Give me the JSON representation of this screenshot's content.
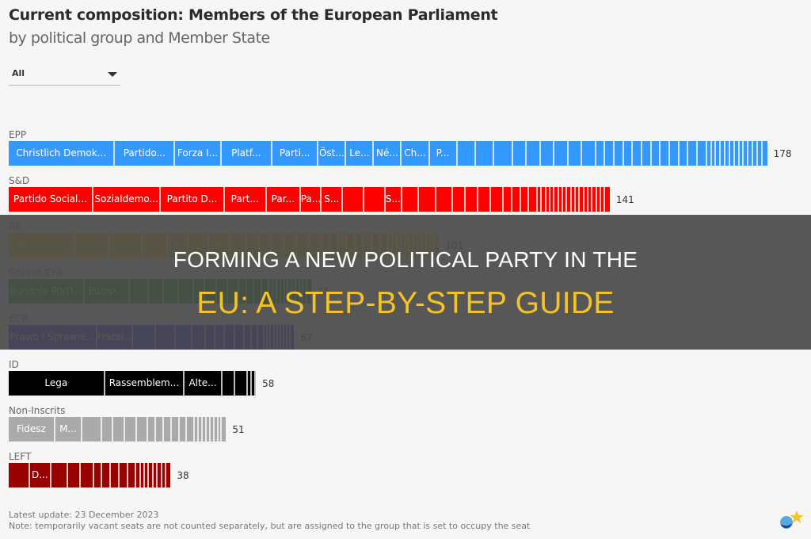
{
  "header": {
    "title": "Current composition: Members of the European Parliament",
    "subtitle": "by political group and Member State"
  },
  "filter": {
    "selected": "All",
    "icon": "chevron-down-icon"
  },
  "chart_data": {
    "type": "bar",
    "title": "Current composition: Members of the European Parliament",
    "subtitle": "by political group and Member State",
    "orientation": "horizontal-stacked",
    "categories": [
      "EPP",
      "S&D",
      "RE",
      "Greens/EFA",
      "ECR",
      "ID",
      "Non-Inscrits",
      "LEFT"
    ],
    "values": [
      178,
      141,
      101,
      71,
      67,
      58,
      51,
      38
    ],
    "colors": [
      "#3399ff",
      "#ff0000",
      "#ffd700",
      "#009900",
      "#0000ff",
      "#000000",
      "#aaaaaa",
      "#990000"
    ],
    "segment_labels": {
      "EPP": [
        "Christlich Demok...",
        "Partido...",
        "Forza I...",
        "Platf...",
        "Parti...",
        "Öst...",
        "Le...",
        "Né...",
        "Ch...",
        "P..."
      ],
      "S&D": [
        "Partido Social...",
        "Sozialdemo...",
        "Partito D...",
        "Part...",
        "Par...",
        "Pa...",
        "S...",
        "",
        "",
        "S..."
      ],
      "RE": [
        "Renaiss...",
        "C...",
        "M...",
        "",
        "F",
        "V",
        "R"
      ],
      "Greens/EFA": [
        "Bündnis 90/D...",
        "Europ..."
      ],
      "ECR": [
        "Prawo i Sprawie...",
        "Fratel..."
      ],
      "ID": [
        "Lega",
        "Rassemblem...",
        "Alte..."
      ],
      "Non-Inscrits": [
        "Fidesz",
        "M..."
      ],
      "LEFT": [
        "",
        "D..."
      ]
    },
    "xlabel": "",
    "ylabel": "",
    "legend": "none"
  },
  "groups": [
    {
      "label": "EPP",
      "count": "178",
      "color": "#3399ff"
    },
    {
      "label": "S&D",
      "count": "141",
      "color": "#ff0000"
    },
    {
      "label": "RE",
      "count": "101",
      "color": "#ffd700"
    },
    {
      "label": "Greens/EFA",
      "count": "71",
      "color": "#009900"
    },
    {
      "label": "ECR",
      "count": "67",
      "color": "#0000ff"
    },
    {
      "label": "ID",
      "count": "58",
      "color": "#000000"
    },
    {
      "label": "Non-Inscrits",
      "count": "51",
      "color": "#aaaaaa"
    },
    {
      "label": "LEFT",
      "count": "38",
      "color": "#990000"
    }
  ],
  "footer": {
    "update": "Latest update: 23 December 2023",
    "note": "Note: temporarily vacant seats are not counted separately, but are assigned to the group that is set to occupy the seat"
  },
  "overlay": {
    "line1": "FORMING A NEW POLITICAL PARTY IN THE",
    "line2": "EU: A STEP-BY-STEP GUIDE"
  }
}
